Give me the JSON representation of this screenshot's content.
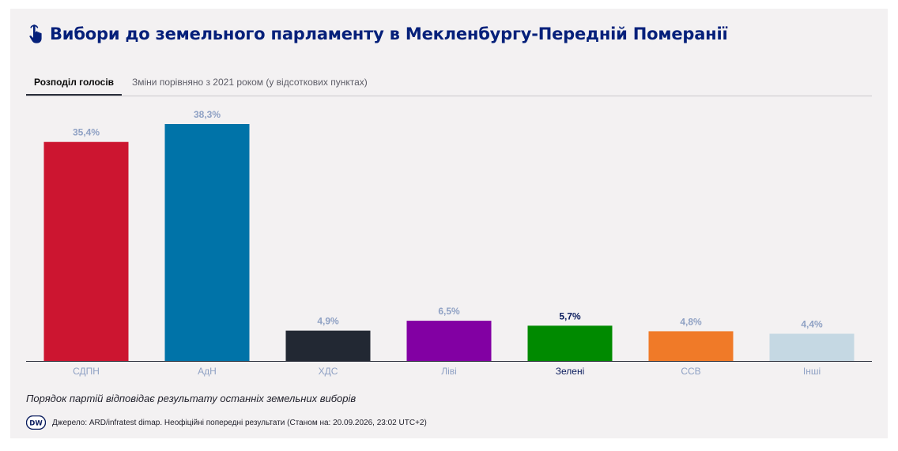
{
  "header": {
    "title": "Вибори до земельного парламенту в Мекленбургу-Передній Померанії",
    "icon": "pointing-hand-icon"
  },
  "tabs": [
    {
      "label": "Розподіл голосів",
      "active": true
    },
    {
      "label": "Зміни порівняно з 2021 роком (у відсоткових пунктах)",
      "active": false
    }
  ],
  "chart_data": {
    "type": "bar",
    "categories": [
      "СДПН",
      "АдН",
      "ХДС",
      "Ліві",
      "Зелені",
      "ССВ",
      "Інші"
    ],
    "values": [
      35.4,
      38.3,
      4.9,
      6.5,
      5.7,
      4.8,
      4.4
    ],
    "value_labels": [
      "35,4%",
      "38,3%",
      "4,9%",
      "6,5%",
      "5,7%",
      "4,8%",
      "4,4%"
    ],
    "colors": [
      "#cc1530",
      "#0073a8",
      "#222833",
      "#8200a3",
      "#008a00",
      "#f07a28",
      "#c5d8e3"
    ],
    "highlighted_index": 4,
    "label_color": "#8fa1c4",
    "highlight_label_color": "#0b1d5e",
    "ylim": [
      0,
      38.3
    ],
    "grid": false,
    "title": "",
    "xlabel": "",
    "ylabel": ""
  },
  "footer": {
    "note": "Порядок партій відповідає результату останніх земельних виборів",
    "source": "Джерело: ARD/infratest dimap. Неофіційні попередні результати (Станом на: 20.09.2026, 23:02 UTC+2)",
    "logo_text": "DW"
  }
}
